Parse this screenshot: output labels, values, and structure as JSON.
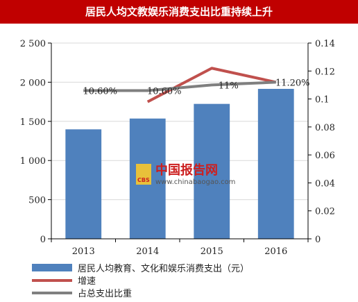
{
  "title": "居民人均文教娱乐消费支出比重持续上升",
  "watermark": {
    "name": "中国报告网",
    "url": "www.chinabaogao.com",
    "logo_text": "CBS"
  },
  "chart_data": {
    "type": "bar",
    "categories": [
      "2013",
      "2014",
      "2015",
      "2016"
    ],
    "y_left": {
      "ylim": [
        0,
        2500
      ],
      "ticks": [
        "0",
        "500",
        "1 000",
        "1 500",
        "2 000",
        "2 500"
      ],
      "tick_values": [
        0,
        500,
        1000,
        1500,
        2000,
        2500
      ]
    },
    "y_right": {
      "ylim": [
        0,
        0.14
      ],
      "ticks": [
        "0",
        "0.02",
        "0.04",
        "0.06",
        "0.08",
        "0.1",
        "0.12",
        "0.14"
      ],
      "tick_values": [
        0,
        0.02,
        0.04,
        0.06,
        0.08,
        0.1,
        0.12,
        0.14
      ]
    },
    "grid": true,
    "legend_position": "bottom",
    "series": [
      {
        "name": "居民人均教育、文化和娱乐消费支出（元）",
        "type": "bar",
        "axis": "left",
        "color": "#4f81bd",
        "values": [
          1398,
          1536,
          1723,
          1915
        ]
      },
      {
        "name": "增速",
        "type": "line",
        "axis": "right",
        "color": "#c0504d",
        "values": [
          null,
          0.098,
          0.122,
          0.112
        ]
      },
      {
        "name": "占总支出比重",
        "type": "line",
        "axis": "right",
        "color": "#7f7f7f",
        "values": [
          0.106,
          0.106,
          0.11,
          0.112
        ],
        "labels": [
          "10.60%",
          "10.60%",
          "11%",
          "11.20%"
        ]
      }
    ]
  }
}
